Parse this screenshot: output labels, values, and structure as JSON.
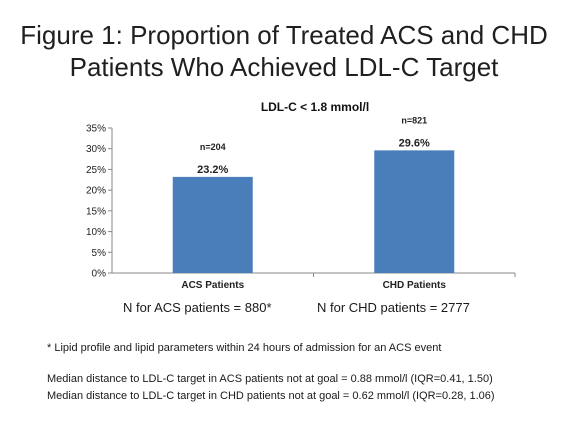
{
  "title_line1": "Figure 1: Proportion of Treated ACS and CHD",
  "title_line2": "Patients Who Achieved LDL-C Target",
  "chart_data": {
    "type": "bar",
    "title": "LDL-C < 1.8 mmol/l",
    "categories": [
      "ACS Patients",
      "CHD Patients"
    ],
    "values": [
      23.2,
      29.6
    ],
    "value_labels": [
      "23.2%",
      "29.6%"
    ],
    "n_labels": [
      "n=204",
      "n=821"
    ],
    "ylim": [
      0,
      35
    ],
    "yticks": [
      "0%",
      "5%",
      "10%",
      "15%",
      "20%",
      "25%",
      "30%",
      "35%"
    ],
    "ytick_values": [
      0,
      5,
      10,
      15,
      20,
      25,
      30,
      35
    ],
    "bar_color": "#4a7ebb",
    "grid": false,
    "legend": "none"
  },
  "n_totals": {
    "acs": "N for ACS patients = 880*",
    "chd": "N for CHD patients = 2777"
  },
  "footnotes": {
    "note": "* Lipid profile and lipid parameters within 24 hours of admission for an ACS event",
    "median_acs": "Median distance to LDL-C target in ACS patients not at goal = 0.88 mmol/l (IQR=0.41, 1.50)",
    "median_chd": "Median distance to LDL-C target in CHD patients not at goal = 0.62 mmol/l (IQR=0.28, 1.06)"
  }
}
